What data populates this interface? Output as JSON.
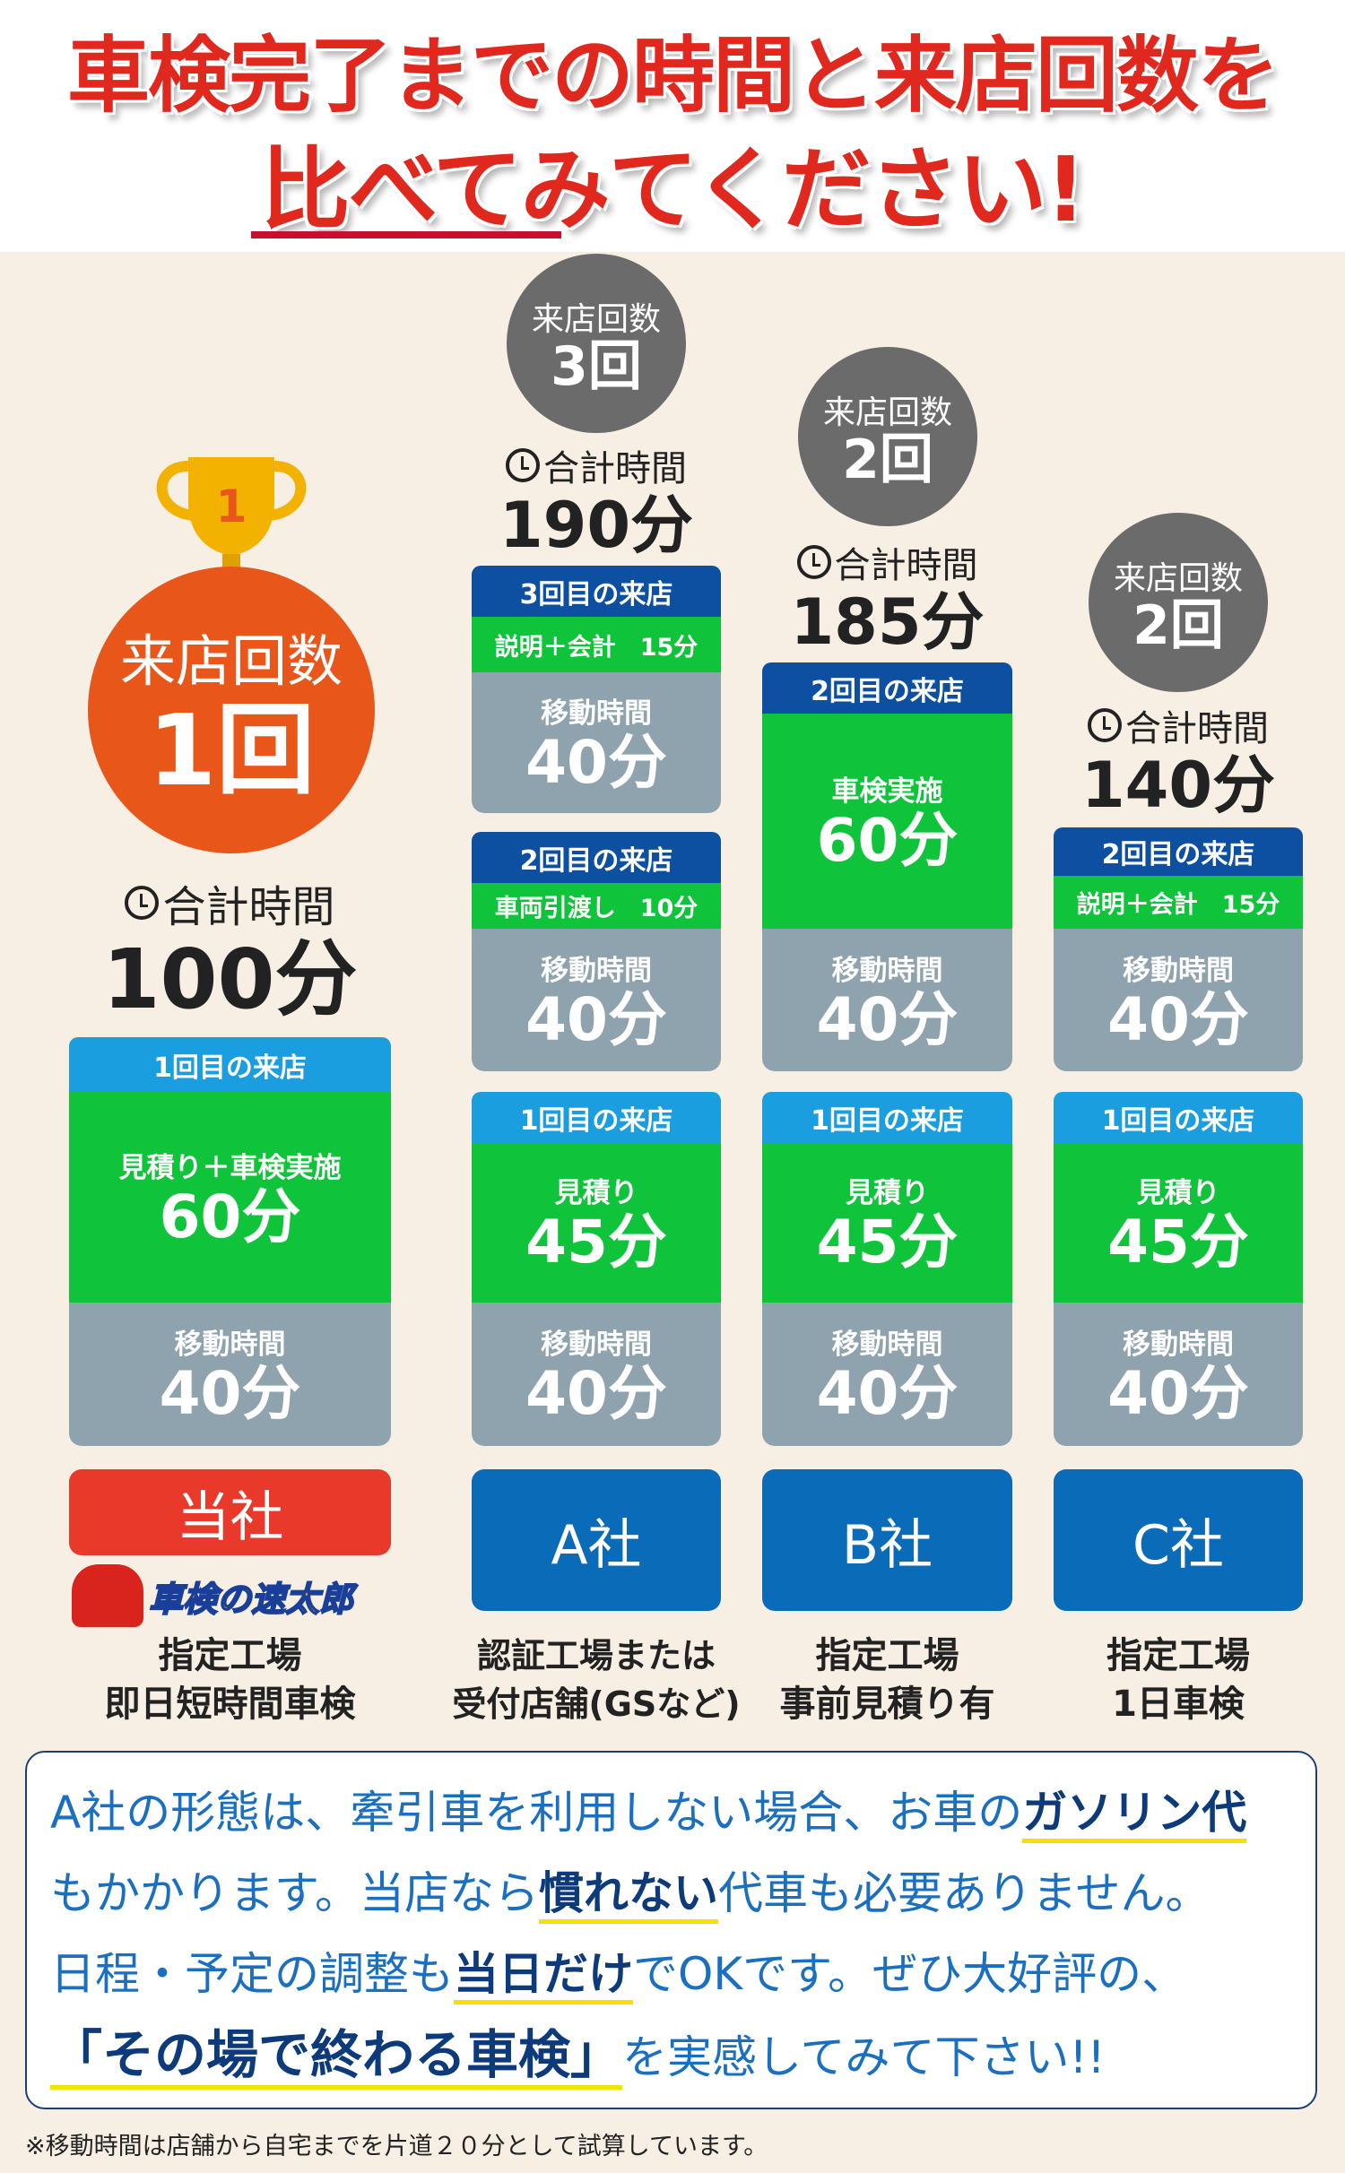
{
  "title": {
    "line1": "車検完了までの時間と来店回数を",
    "line2": "比べてみてください!"
  },
  "visits_label": "来店回数",
  "total_label": "合計時間",
  "columns": [
    {
      "name": "当社",
      "visits": "1回",
      "total": "100分",
      "desc1": "指定工場",
      "desc2": "即日短時間車検",
      "logo_text": "車検の速太郎 hayataro",
      "segments": [
        {
          "header": "1回目の来店",
          "label": "見積り＋車検実施",
          "value": "60分"
        },
        {
          "label": "移動時間",
          "value": "40分"
        }
      ]
    },
    {
      "name": "A社",
      "visits": "3回",
      "total": "190分",
      "desc1": "認証工場または",
      "desc2": "受付店舗(GSなど)",
      "segments": [
        {
          "header": "3回目の来店",
          "sub": "説明＋会計　15分"
        },
        {
          "label": "移動時間",
          "value": "40分"
        },
        {
          "header": "2回目の来店",
          "sub": "車両引渡し　10分"
        },
        {
          "label": "移動時間",
          "value": "40分"
        },
        {
          "header": "1回目の来店",
          "label": "見積り",
          "value": "45分"
        },
        {
          "label": "移動時間",
          "value": "40分"
        }
      ]
    },
    {
      "name": "B社",
      "visits": "2回",
      "total": "185分",
      "desc1": "指定工場",
      "desc2": "事前見積り有",
      "segments": [
        {
          "header": "2回目の来店",
          "label": "車検実施",
          "value": "60分"
        },
        {
          "label": "移動時間",
          "value": "40分"
        },
        {
          "header": "1回目の来店",
          "label": "見積り",
          "value": "45分"
        },
        {
          "label": "移動時間",
          "value": "40分"
        }
      ]
    },
    {
      "name": "C社",
      "visits": "2回",
      "total": "140分",
      "desc1": "指定工場",
      "desc2": "1日車検",
      "segments": [
        {
          "header": "2回目の来店",
          "sub": "説明＋会計　15分"
        },
        {
          "label": "移動時間",
          "value": "40分"
        },
        {
          "header": "1回目の来店",
          "label": "見積り",
          "value": "45分"
        },
        {
          "label": "移動時間",
          "value": "40分"
        }
      ]
    }
  ],
  "info": {
    "l1a": "A社の形態は、牽引車を利用しない場合、お車の",
    "l1b": "ガソリン代",
    "l2a": "もかかります。当店なら",
    "l2b": "慣れない",
    "l2c": "代車も必要ありません。",
    "l3a": "日程・予定の調整も",
    "l3b": "当日だけ",
    "l3c": "でOKです。ぜひ大好評の、",
    "l4a": "「その場で終わる車検」",
    "l4b": "を実感してみて下さい!!"
  },
  "note": "※移動時間は店舗から自宅までを片道２０分として試算しています。",
  "colors": {
    "title": "#e0281e",
    "orange": "#e8561a",
    "green": "#0fc43a",
    "dark_blue": "#0d4fa0",
    "light_blue": "#1a9ee0",
    "gray": "#8fa3ae",
    "company_blue": "#0a6bb8",
    "our_red": "#e8392a"
  }
}
